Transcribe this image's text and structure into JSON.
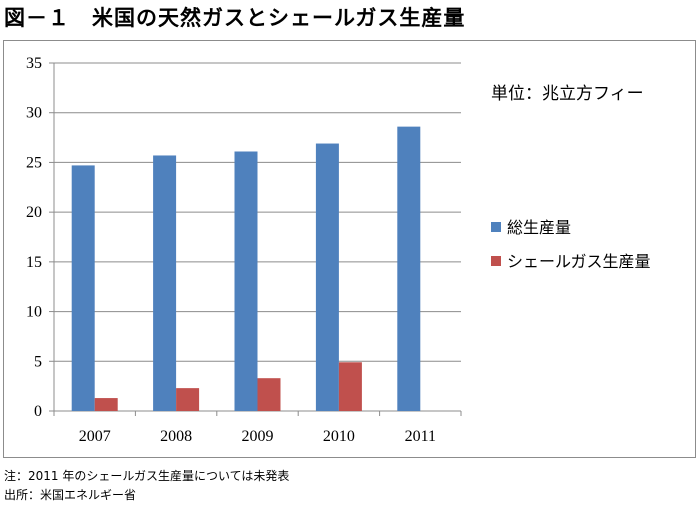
{
  "title": "図－１　米国の天然ガスとシェールガス生産量",
  "notes": {
    "note": "注：2011 年のシェールガス生産量については未発表",
    "source": "出所：米国エネルギー省"
  },
  "chart_data": {
    "type": "bar",
    "unit_label": "単位：兆立方フィー",
    "categories": [
      "2007",
      "2008",
      "2009",
      "2010",
      "2011"
    ],
    "ylim": [
      0,
      35
    ],
    "yticks": [
      0,
      5,
      10,
      15,
      20,
      25,
      30,
      35
    ],
    "grid": true,
    "legend_position": "right",
    "series": [
      {
        "name": "総生産量",
        "color": "#4f81bd",
        "values": [
          24.7,
          25.7,
          26.1,
          26.9,
          28.6
        ]
      },
      {
        "name": "シェールガス生産量",
        "color": "#c0504d",
        "values": [
          1.3,
          2.3,
          3.3,
          4.9,
          null
        ]
      }
    ]
  }
}
